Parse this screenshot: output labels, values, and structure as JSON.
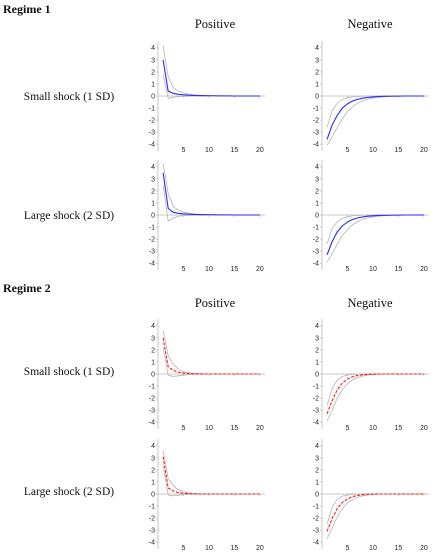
{
  "colors": {
    "regime1": "#2a2aff",
    "regime2": "#ff1a1a",
    "band": "#b5b5b5",
    "axis": "#b9b9b9"
  },
  "chart_data": {
    "type": "line",
    "x_ticks": [
      5,
      10,
      15,
      20
    ],
    "y_ticks": [
      4,
      3,
      2,
      1,
      0,
      -1,
      -2,
      -3,
      -4
    ],
    "xlim": [
      0,
      21
    ],
    "ylim": [
      -4.4,
      4.4
    ],
    "x": [
      1,
      2,
      3,
      4,
      5,
      6,
      7,
      8,
      9,
      10,
      11,
      12,
      13,
      14,
      15,
      16,
      17,
      18,
      19,
      20
    ],
    "column_headers": [
      "Positive",
      "Negative"
    ],
    "row_labels": [
      "Small shock (1 SD)",
      "Large shock (2 SD)"
    ],
    "regimes": [
      {
        "title": "Regime 1",
        "panels": [
          {
            "row": 0,
            "col": 0,
            "dashed": false,
            "values": [
              3.0,
              0.4,
              0.22,
              0.14,
              0.1,
              0.07,
              0.05,
              0.04,
              0.03,
              0.02,
              0.02,
              0.01,
              0.01,
              0.01,
              0.0,
              0.0,
              0.0,
              0.0,
              0.0,
              0.0
            ],
            "upper": [
              4.2,
              1.6,
              0.7,
              0.4,
              0.25,
              0.16,
              0.1,
              0.07,
              0.05,
              0.04,
              0.03,
              0.02,
              0.02,
              0.01,
              0.01,
              0.01,
              0.01,
              0.0,
              0.0,
              0.0
            ],
            "lower": [
              1.8,
              -0.2,
              -0.1,
              -0.05,
              -0.03,
              -0.02,
              -0.01,
              -0.01,
              0.0,
              0.0,
              0.0,
              0.0,
              0.0,
              0.0,
              0.0,
              0.0,
              0.0,
              0.0,
              0.0,
              0.0
            ]
          },
          {
            "row": 0,
            "col": 1,
            "dashed": false,
            "values": [
              -3.6,
              -2.4,
              -1.6,
              -1.0,
              -0.65,
              -0.42,
              -0.27,
              -0.18,
              -0.12,
              -0.08,
              -0.05,
              -0.03,
              -0.02,
              -0.01,
              -0.01,
              0.0,
              0.0,
              0.0,
              0.0,
              0.0
            ],
            "upper": [
              -2.6,
              -1.2,
              -0.6,
              -0.3,
              -0.15,
              -0.08,
              -0.04,
              -0.02,
              -0.01,
              0.0,
              0.0,
              0.0,
              0.0,
              0.0,
              0.0,
              0.0,
              0.0,
              0.0,
              0.0,
              0.0
            ],
            "lower": [
              -4.1,
              -3.4,
              -2.6,
              -1.9,
              -1.3,
              -0.9,
              -0.6,
              -0.4,
              -0.26,
              -0.17,
              -0.11,
              -0.07,
              -0.05,
              -0.03,
              -0.02,
              -0.01,
              -0.01,
              0.0,
              0.0,
              0.0
            ]
          },
          {
            "row": 1,
            "col": 0,
            "dashed": false,
            "values": [
              3.5,
              0.55,
              0.22,
              0.14,
              0.1,
              0.07,
              0.05,
              0.04,
              0.03,
              0.02,
              0.02,
              0.01,
              0.01,
              0.01,
              0.0,
              0.0,
              0.0,
              0.0,
              0.0,
              0.0
            ],
            "upper": [
              4.3,
              1.8,
              0.7,
              0.4,
              0.25,
              0.16,
              0.1,
              0.07,
              0.05,
              0.04,
              0.03,
              0.02,
              0.02,
              0.01,
              0.01,
              0.01,
              0.01,
              0.0,
              0.0,
              0.0
            ],
            "lower": [
              2.5,
              -0.5,
              -0.25,
              -0.1,
              -0.05,
              -0.03,
              -0.02,
              -0.01,
              0.0,
              0.0,
              0.0,
              0.0,
              0.0,
              0.0,
              0.0,
              0.0,
              0.0,
              0.0,
              0.0,
              0.0
            ]
          },
          {
            "row": 1,
            "col": 1,
            "dashed": false,
            "values": [
              -3.3,
              -2.2,
              -1.4,
              -0.9,
              -0.58,
              -0.37,
              -0.24,
              -0.16,
              -0.1,
              -0.07,
              -0.04,
              -0.03,
              -0.02,
              -0.01,
              -0.01,
              0.0,
              0.0,
              0.0,
              0.0,
              0.0
            ],
            "upper": [
              -2.4,
              -1.1,
              -0.55,
              -0.28,
              -0.14,
              -0.07,
              -0.04,
              -0.02,
              -0.01,
              0.0,
              0.0,
              0.0,
              0.0,
              0.0,
              0.0,
              0.0,
              0.0,
              0.0,
              0.0,
              0.0
            ],
            "lower": [
              -3.9,
              -3.2,
              -2.4,
              -1.7,
              -1.2,
              -0.82,
              -0.55,
              -0.36,
              -0.24,
              -0.16,
              -0.1,
              -0.07,
              -0.04,
              -0.03,
              -0.02,
              -0.01,
              -0.01,
              0.0,
              0.0,
              0.0
            ]
          }
        ]
      },
      {
        "title": "Regime 2",
        "panels": [
          {
            "row": 0,
            "col": 0,
            "dashed": true,
            "values": [
              3.0,
              0.6,
              0.3,
              0.15,
              0.08,
              0.04,
              0.02,
              0.01,
              0.0,
              0.0,
              0.0,
              0.0,
              0.0,
              0.0,
              0.0,
              0.0,
              0.0,
              0.0,
              0.0,
              0.0
            ],
            "upper": [
              3.6,
              1.5,
              0.8,
              0.4,
              0.2,
              0.1,
              0.05,
              0.03,
              0.02,
              0.01,
              0.01,
              0.0,
              0.0,
              0.0,
              0.0,
              0.0,
              0.0,
              0.0,
              0.0,
              0.0
            ],
            "lower": [
              2.2,
              -0.1,
              -0.2,
              -0.15,
              -0.1,
              -0.06,
              -0.03,
              -0.02,
              -0.01,
              0.0,
              0.0,
              0.0,
              0.0,
              0.0,
              0.0,
              0.0,
              0.0,
              0.0,
              0.0,
              0.0
            ]
          },
          {
            "row": 0,
            "col": 1,
            "dashed": true,
            "values": [
              -3.3,
              -2.2,
              -1.3,
              -0.75,
              -0.42,
              -0.23,
              -0.12,
              -0.06,
              -0.03,
              -0.01,
              0.0,
              0.0,
              0.0,
              0.0,
              0.0,
              0.0,
              0.0,
              0.0,
              0.0,
              0.0
            ],
            "upper": [
              -2.6,
              -1.2,
              -0.5,
              -0.2,
              -0.08,
              -0.03,
              -0.01,
              0.0,
              0.0,
              0.0,
              0.0,
              0.0,
              0.0,
              0.0,
              0.0,
              0.0,
              0.0,
              0.0,
              0.0,
              0.0
            ],
            "lower": [
              -3.9,
              -3.0,
              -2.0,
              -1.3,
              -0.8,
              -0.48,
              -0.28,
              -0.16,
              -0.09,
              -0.05,
              -0.03,
              -0.01,
              0.0,
              0.0,
              0.0,
              0.0,
              0.0,
              0.0,
              0.0,
              0.0
            ]
          },
          {
            "row": 1,
            "col": 0,
            "dashed": true,
            "values": [
              3.1,
              0.5,
              0.25,
              0.12,
              0.06,
              0.03,
              0.01,
              0.0,
              0.0,
              0.0,
              0.0,
              0.0,
              0.0,
              0.0,
              0.0,
              0.0,
              0.0,
              0.0,
              0.0,
              0.0
            ],
            "upper": [
              3.6,
              1.3,
              0.7,
              0.35,
              0.18,
              0.09,
              0.05,
              0.03,
              0.02,
              0.01,
              0.01,
              0.0,
              0.0,
              0.0,
              0.0,
              0.0,
              0.0,
              0.0,
              0.0,
              0.0
            ],
            "lower": [
              2.4,
              -0.1,
              -0.15,
              -0.1,
              -0.06,
              -0.03,
              -0.02,
              -0.01,
              0.0,
              0.0,
              0.0,
              0.0,
              0.0,
              0.0,
              0.0,
              0.0,
              0.0,
              0.0,
              0.0,
              0.0
            ]
          },
          {
            "row": 1,
            "col": 1,
            "dashed": true,
            "values": [
              -3.1,
              -2.0,
              -1.2,
              -0.7,
              -0.4,
              -0.22,
              -0.12,
              -0.06,
              -0.03,
              -0.01,
              0.0,
              0.0,
              0.0,
              0.0,
              0.0,
              0.0,
              0.0,
              0.0,
              0.0,
              0.0
            ],
            "upper": [
              -2.5,
              -1.1,
              -0.45,
              -0.18,
              -0.07,
              -0.03,
              -0.01,
              0.0,
              0.0,
              0.0,
              0.0,
              0.0,
              0.0,
              0.0,
              0.0,
              0.0,
              0.0,
              0.0,
              0.0,
              0.0
            ],
            "lower": [
              -3.7,
              -2.8,
              -1.9,
              -1.2,
              -0.75,
              -0.45,
              -0.26,
              -0.15,
              -0.08,
              -0.04,
              -0.02,
              -0.01,
              0.0,
              0.0,
              0.0,
              0.0,
              0.0,
              0.0,
              0.0,
              0.0
            ]
          }
        ]
      }
    ]
  }
}
